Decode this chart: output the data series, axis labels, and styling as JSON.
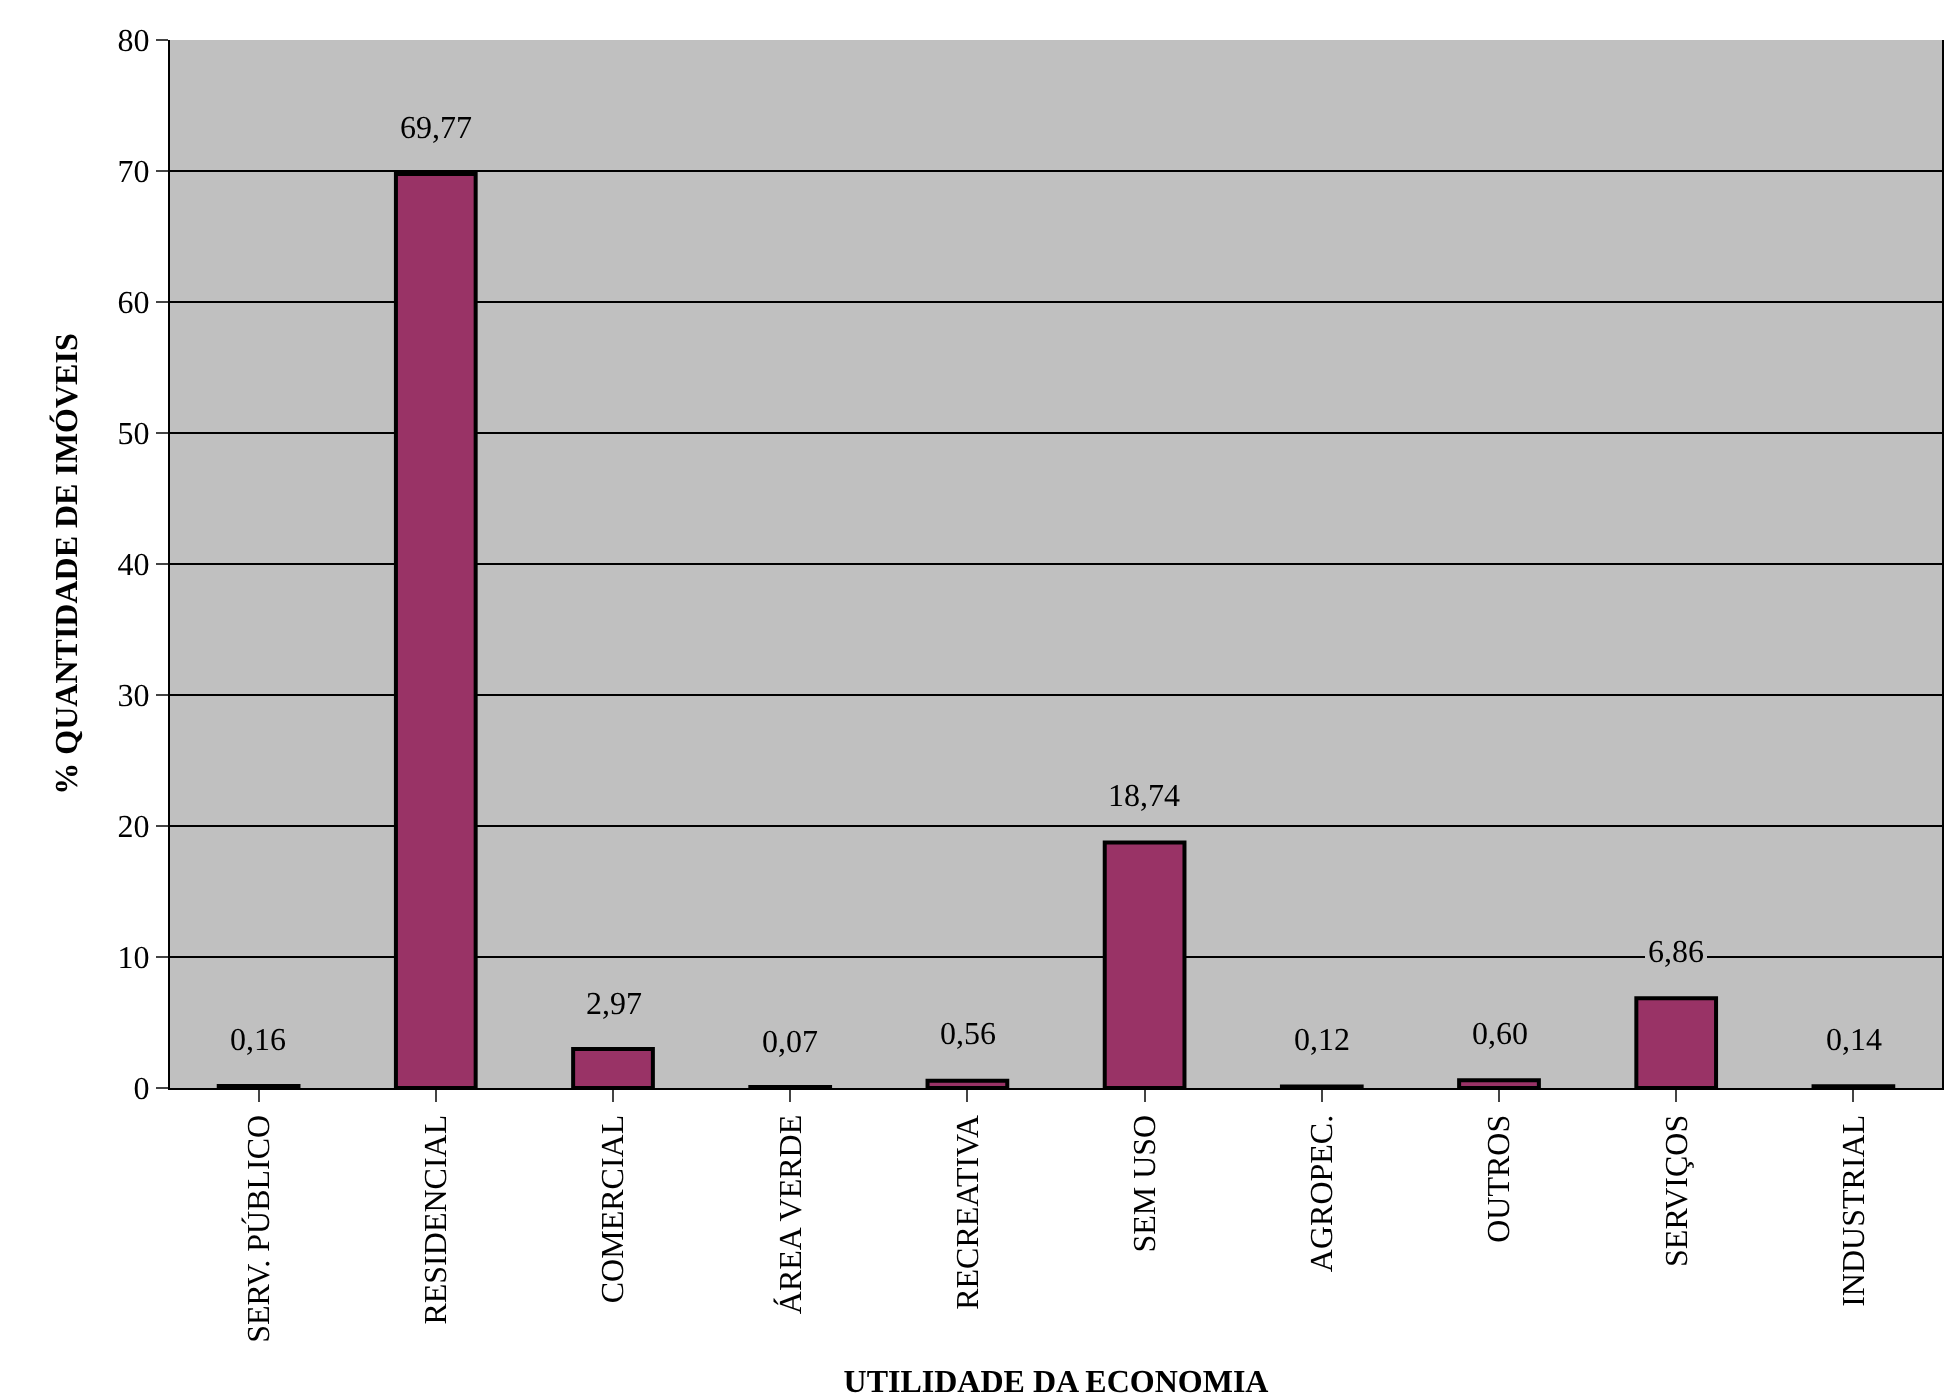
{
  "chart_data": {
    "type": "bar",
    "xlabel": "UTILIDADE DA ECONOMIA",
    "ylabel": "% QUANTIDADE DE IMÓVEIS",
    "categories": [
      "SERV. PÚBLICO",
      "RESIDENCIAL",
      "COMERCIAL",
      "ÁREA VERDE",
      "RECREATIVA",
      "SEM USO",
      "AGROPEC.",
      "OUTROS",
      "SERVIÇOS",
      "INDUSTRIAL"
    ],
    "values": [
      0.16,
      69.77,
      2.97,
      0.07,
      0.56,
      18.74,
      0.12,
      0.6,
      6.86,
      0.14
    ],
    "value_labels": [
      "0,16",
      "69,77",
      "2,97",
      "0,07",
      "0,56",
      "18,74",
      "0,12",
      "0,60",
      "6,86",
      "0,14"
    ],
    "color": "#993366",
    "ylim": [
      0,
      80
    ],
    "yticks": [
      0,
      10,
      20,
      30,
      40,
      50,
      60,
      70,
      80
    ],
    "grid": "y",
    "legend": false
  }
}
